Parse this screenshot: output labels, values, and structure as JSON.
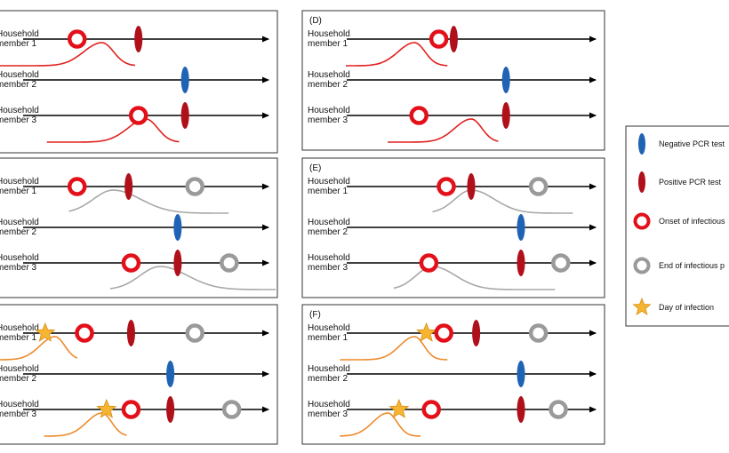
{
  "colors": {
    "positive_test": "#b0101a",
    "negative_test": "#1f63b5",
    "onset_ring": "#e3101a",
    "end_ring": "#9a9a9a",
    "star": "#f5b532",
    "curve_red": "#e0211e",
    "curve_grey": "#a8a8a8",
    "curve_orange": "#ee8a2b"
  },
  "panels": [
    {
      "id": "left-top",
      "letter": "",
      "rows": [
        {
          "label": [
            "Household",
            "member 1"
          ],
          "events": [
            {
              "type": "onset",
              "pos": 0.22
            },
            {
              "type": "positive",
              "pos": 0.47
            }
          ],
          "curve": {
            "type": "red",
            "peak": 0.37,
            "width": 0.12,
            "start": 0.0,
            "end": 0.49
          }
        },
        {
          "label": [
            "Household",
            "member 2"
          ],
          "events": [
            {
              "type": "negative",
              "pos": 0.66
            }
          ]
        },
        {
          "label": [
            "Household",
            "member 3"
          ],
          "events": [
            {
              "type": "onset",
              "pos": 0.47
            },
            {
              "type": "positive",
              "pos": 0.66
            }
          ],
          "curve": {
            "type": "red",
            "peak": 0.53,
            "width": 0.12,
            "start": 0.17,
            "end": 0.65
          }
        }
      ]
    },
    {
      "id": "D",
      "letter": "(D)",
      "rows": [
        {
          "label": [
            "Household",
            "member 1"
          ],
          "events": [
            {
              "type": "onset",
              "pos": 0.37
            },
            {
              "type": "positive",
              "pos": 0.43
            }
          ],
          "curve": {
            "type": "red",
            "peak": 0.37,
            "width": 0.1,
            "start": 0.14,
            "end": 0.48
          }
        },
        {
          "label": [
            "Household",
            "member 2"
          ],
          "events": [
            {
              "type": "negative",
              "pos": 0.64
            }
          ]
        },
        {
          "label": [
            "Household",
            "member 3"
          ],
          "events": [
            {
              "type": "onset",
              "pos": 0.29
            },
            {
              "type": "positive",
              "pos": 0.64
            }
          ],
          "curve": {
            "type": "red",
            "peak": 0.56,
            "width": 0.1,
            "start": 0.28,
            "end": 0.65
          }
        }
      ]
    },
    {
      "id": "left-middle",
      "letter": "",
      "rows": [
        {
          "label": [
            "Household",
            "member 1"
          ],
          "events": [
            {
              "type": "onset",
              "pos": 0.22
            },
            {
              "type": "positive",
              "pos": 0.43
            },
            {
              "type": "end",
              "pos": 0.7
            }
          ],
          "curve": {
            "type": "grey",
            "peak": 0.41,
            "width": 0.13,
            "start": 0.25,
            "end": 0.83
          }
        },
        {
          "label": [
            "Household",
            "member 2"
          ],
          "events": [
            {
              "type": "negative",
              "pos": 0.63
            }
          ]
        },
        {
          "label": [
            "Household",
            "member 3"
          ],
          "events": [
            {
              "type": "onset",
              "pos": 0.44
            },
            {
              "type": "positive",
              "pos": 0.63
            },
            {
              "type": "end",
              "pos": 0.84
            }
          ],
          "curve": {
            "type": "grey",
            "peak": 0.58,
            "width": 0.13,
            "start": 0.4,
            "end": 1.0
          }
        }
      ]
    },
    {
      "id": "E",
      "letter": "(E)",
      "rows": [
        {
          "label": [
            "Household",
            "member 1"
          ],
          "events": [
            {
              "type": "onset",
              "pos": 0.4
            },
            {
              "type": "positive",
              "pos": 0.5
            },
            {
              "type": "end",
              "pos": 0.77
            }
          ],
          "curve": {
            "type": "grey",
            "peak": 0.56,
            "width": 0.1,
            "start": 0.43,
            "end": 0.9
          }
        },
        {
          "label": [
            "Household",
            "member 2"
          ],
          "events": [
            {
              "type": "negative",
              "pos": 0.7
            }
          ]
        },
        {
          "label": [
            "Household",
            "member 3"
          ],
          "events": [
            {
              "type": "onset",
              "pos": 0.33
            },
            {
              "type": "positive",
              "pos": 0.7
            },
            {
              "type": "end",
              "pos": 0.86
            }
          ],
          "curve": {
            "type": "grey",
            "peak": 0.43,
            "width": 0.1,
            "start": 0.3,
            "end": 0.84
          }
        }
      ]
    },
    {
      "id": "left-bottom",
      "letter": "",
      "rows": [
        {
          "label": [
            "Household",
            "member 1"
          ],
          "events": [
            {
              "type": "star",
              "pos": 0.09
            },
            {
              "type": "onset",
              "pos": 0.25
            },
            {
              "type": "positive",
              "pos": 0.44
            },
            {
              "type": "end",
              "pos": 0.7
            }
          ],
          "curve": {
            "type": "orange",
            "peak": 0.2,
            "width": 0.1,
            "start": 0.0,
            "end": 0.28
          }
        },
        {
          "label": [
            "Household",
            "member 2"
          ],
          "events": [
            {
              "type": "negative",
              "pos": 0.6
            }
          ]
        },
        {
          "label": [
            "Household",
            "member 3"
          ],
          "events": [
            {
              "type": "star",
              "pos": 0.34
            },
            {
              "type": "onset",
              "pos": 0.44
            },
            {
              "type": "positive",
              "pos": 0.6
            },
            {
              "type": "end",
              "pos": 0.85
            }
          ],
          "curve": {
            "type": "orange",
            "peak": 0.37,
            "width": 0.1,
            "start": 0.16,
            "end": 0.46
          }
        }
      ]
    },
    {
      "id": "F",
      "letter": "(F)",
      "rows": [
        {
          "label": [
            "Household",
            "member 1"
          ],
          "events": [
            {
              "type": "star",
              "pos": 0.32
            },
            {
              "type": "onset",
              "pos": 0.39
            },
            {
              "type": "positive",
              "pos": 0.52
            },
            {
              "type": "end",
              "pos": 0.77
            }
          ],
          "curve": {
            "type": "orange",
            "peak": 0.37,
            "width": 0.09,
            "start": 0.12,
            "end": 0.48
          }
        },
        {
          "label": [
            "Household",
            "member 2"
          ],
          "events": [
            {
              "type": "negative",
              "pos": 0.7
            }
          ]
        },
        {
          "label": [
            "Household",
            "member 3"
          ],
          "events": [
            {
              "type": "star",
              "pos": 0.21
            },
            {
              "type": "onset",
              "pos": 0.34
            },
            {
              "type": "positive",
              "pos": 0.7
            },
            {
              "type": "end",
              "pos": 0.85
            }
          ],
          "curve": {
            "type": "orange",
            "peak": 0.28,
            "width": 0.09,
            "start": 0.12,
            "end": 0.39
          }
        }
      ]
    }
  ],
  "legend": {
    "items": [
      {
        "type": "negative",
        "label": "Negative PCR test"
      },
      {
        "type": "positive",
        "label": "Positive PCR test"
      },
      {
        "type": "onset",
        "label": "Onset of infectious"
      },
      {
        "type": "end",
        "label": "End of infectious p"
      },
      {
        "type": "star",
        "label": "Day of infection"
      }
    ]
  }
}
